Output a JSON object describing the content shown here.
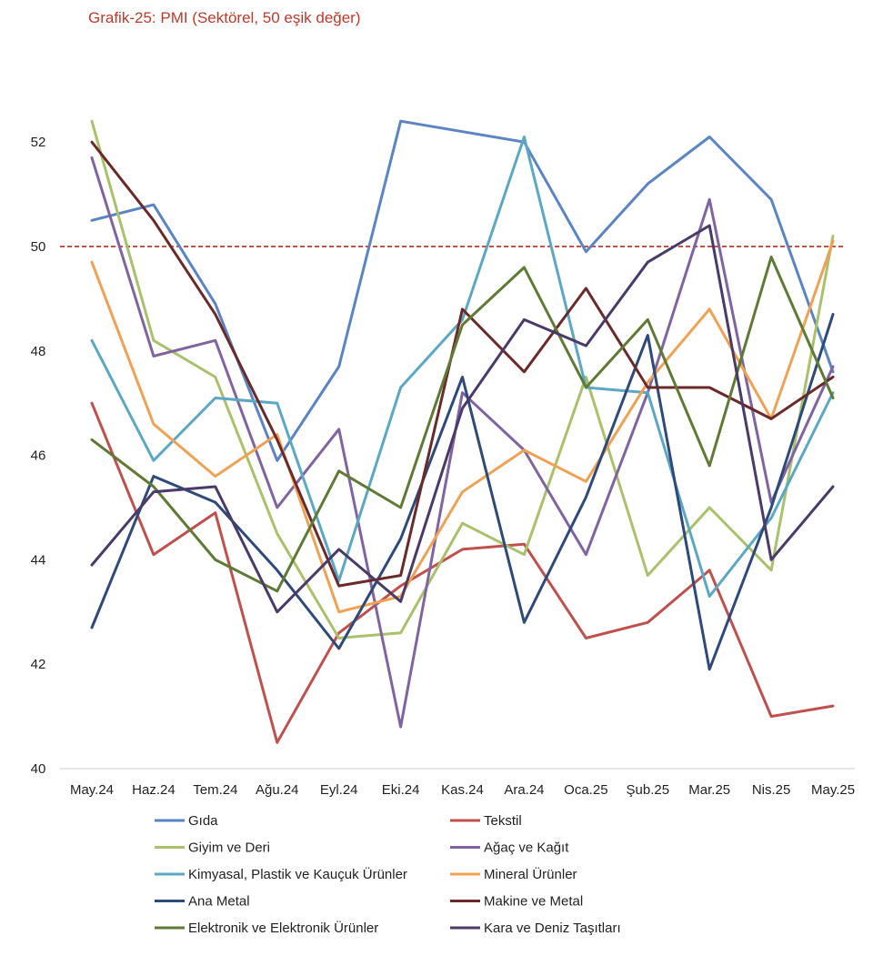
{
  "title": "Grafik-25: PMI (Sektörel, 50 eşik değer)",
  "chart_data": {
    "type": "line",
    "title": "Grafik-25: PMI (Sektörel, 50 eşik değer)",
    "xlabel": "",
    "ylabel": "",
    "categories": [
      "May.24",
      "Haz.24",
      "Tem.24",
      "Ağu.24",
      "Eyl.24",
      "Eki.24",
      "Kas.24",
      "Ara.24",
      "Oca.25",
      "Şub.25",
      "Mar.25",
      "Nis.25",
      "May.25"
    ],
    "ylim": [
      40,
      52
    ],
    "yticks": [
      40,
      42,
      44,
      46,
      48,
      50,
      52
    ],
    "grid": false,
    "threshold": {
      "value": 50,
      "color": "#c0392b"
    },
    "legend_position": "bottom",
    "series": [
      {
        "name": "Gıda",
        "color": "#5b84c4",
        "values": [
          50.5,
          50.8,
          48.9,
          45.9,
          47.7,
          52.4,
          52.2,
          52.0,
          49.9,
          51.2,
          52.1,
          50.9,
          47.6
        ]
      },
      {
        "name": "Tekstil",
        "color": "#c0504d",
        "values": [
          47.0,
          44.1,
          44.9,
          40.5,
          42.6,
          43.5,
          44.2,
          44.3,
          42.5,
          42.8,
          43.8,
          41.0,
          41.2
        ]
      },
      {
        "name": "Giyim ve Deri",
        "color": "#a9c16a",
        "values": [
          52.4,
          48.2,
          47.5,
          44.5,
          42.5,
          42.6,
          44.7,
          44.1,
          47.5,
          43.7,
          45.0,
          43.8,
          50.2
        ]
      },
      {
        "name": "Ağaç ve Kağıt",
        "color": "#8064a2",
        "values": [
          51.7,
          47.9,
          48.2,
          45.0,
          46.5,
          40.8,
          47.2,
          46.1,
          44.1,
          47.2,
          50.9,
          45.1,
          47.7
        ]
      },
      {
        "name": "Kimyasal, Plastik ve Kauçuk Ürünler",
        "color": "#5ba8c4",
        "values": [
          48.2,
          45.9,
          47.1,
          47.0,
          43.6,
          47.3,
          48.6,
          52.1,
          47.3,
          47.2,
          43.3,
          44.8,
          47.2
        ]
      },
      {
        "name": "Mineral Ürünler",
        "color": "#f0a254",
        "values": [
          49.7,
          46.6,
          45.6,
          46.4,
          43.0,
          43.3,
          45.3,
          46.1,
          45.5,
          47.4,
          48.8,
          46.7,
          50.1
        ]
      },
      {
        "name": "Ana Metal",
        "color": "#2e4a7a",
        "values": [
          42.7,
          45.6,
          45.1,
          43.8,
          42.3,
          44.4,
          47.5,
          42.8,
          45.2,
          48.3,
          41.9,
          45.0,
          48.7
        ]
      },
      {
        "name": "Makine ve Metal",
        "color": "#6b2a2a",
        "values": [
          52.0,
          50.5,
          48.7,
          46.3,
          43.5,
          43.7,
          48.8,
          47.6,
          49.2,
          47.3,
          47.3,
          46.7,
          47.5
        ]
      },
      {
        "name": "Elektronik ve Elektronik Ürünler",
        "color": "#5e7a35",
        "values": [
          46.3,
          45.4,
          44.0,
          43.4,
          45.7,
          45.0,
          48.5,
          49.6,
          47.3,
          48.6,
          45.8,
          49.8,
          47.1
        ]
      },
      {
        "name": "Kara ve Deniz Taşıtları",
        "color": "#4a3a6a",
        "values": [
          43.9,
          45.3,
          45.4,
          43.0,
          44.2,
          43.2,
          46.9,
          48.6,
          48.1,
          49.7,
          50.4,
          44.0,
          45.4
        ]
      }
    ]
  }
}
